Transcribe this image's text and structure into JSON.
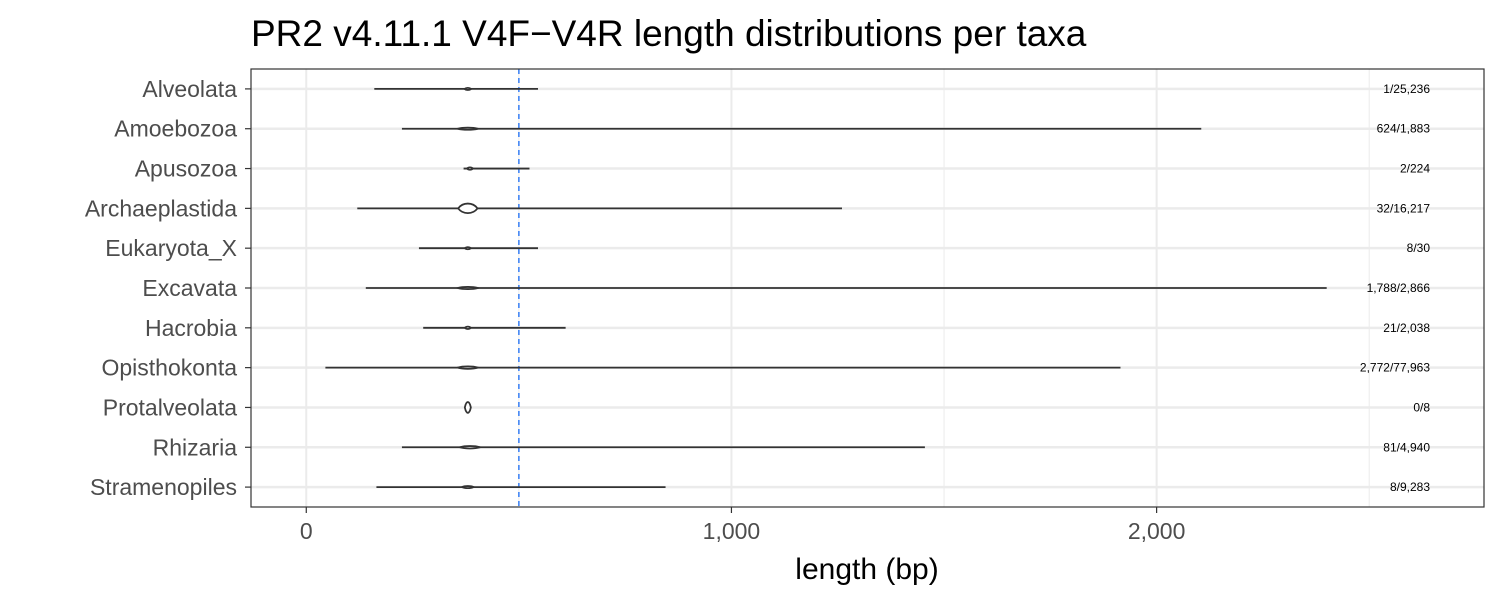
{
  "chart_data": {
    "type": "violin",
    "title": "PR2 v4.11.1 V4F−V4R length distributions per taxa",
    "xlabel": "length (bp)",
    "ylabel": "",
    "xlim": [
      -130,
      2770
    ],
    "xticks": [
      0,
      1000,
      2000
    ],
    "xtick_labels": [
      "0",
      "1,000",
      "2,000"
    ],
    "reference_line": {
      "x": 500,
      "color": "#4285f4",
      "style": "dashed"
    },
    "grid": true,
    "categories": [
      "Alveolata",
      "Amoebozoa",
      "Apusozoa",
      "Archaeplastida",
      "Eukaryota_X",
      "Excavata",
      "Hacrobia",
      "Opisthokonta",
      "Protalveolata",
      "Rhizaria",
      "Stramenopiles"
    ],
    "series": [
      {
        "category": "Alveolata",
        "min": 160,
        "max": 545,
        "peak": 380,
        "peak_width": 0.07,
        "count_label": "1/25,236"
      },
      {
        "category": "Amoebozoa",
        "min": 225,
        "max": 2105,
        "peak": 380,
        "peak_width": 0.02,
        "count_label": "624/1,883"
      },
      {
        "category": "Apusozoa",
        "min": 370,
        "max": 525,
        "peak": 385,
        "peak_width": 0.08,
        "count_label": "2/224"
      },
      {
        "category": "Archaeplastida",
        "min": 120,
        "max": 1260,
        "peak": 380,
        "peak_width": 0.32,
        "count_label": "32/16,217"
      },
      {
        "category": "Eukaryota_X",
        "min": 265,
        "max": 545,
        "peak": 380,
        "peak_width": 0.02,
        "count_label": "8/30"
      },
      {
        "category": "Excavata",
        "min": 140,
        "max": 2400,
        "peak": 380,
        "peak_width": 0.02,
        "count_label": "1,788/2,866"
      },
      {
        "category": "Hacrobia",
        "min": 275,
        "max": 610,
        "peak": 380,
        "peak_width": 0.08,
        "count_label": "21/2,038"
      },
      {
        "category": "Opisthokonta",
        "min": 45,
        "max": 1915,
        "peak": 380,
        "peak_width": 0.08,
        "count_label": "2,772/77,963"
      },
      {
        "category": "Protalveolata",
        "min": 376,
        "max": 384,
        "peak": 380,
        "peak_width": 0.36,
        "count_label": "0/8"
      },
      {
        "category": "Rhizaria",
        "min": 225,
        "max": 1455,
        "peak": 385,
        "peak_width": 0.08,
        "count_label": "81/4,940"
      },
      {
        "category": "Stramenopiles",
        "min": 165,
        "max": 845,
        "peak": 380,
        "peak_width": 0.07,
        "count_label": "8/9,283"
      }
    ],
    "colors": {
      "outline": "#333333",
      "panel_border": "#333333",
      "grid": "#ebebeb",
      "axis_text": "#4d4d4d",
      "reference_line": "#4285f4"
    }
  }
}
